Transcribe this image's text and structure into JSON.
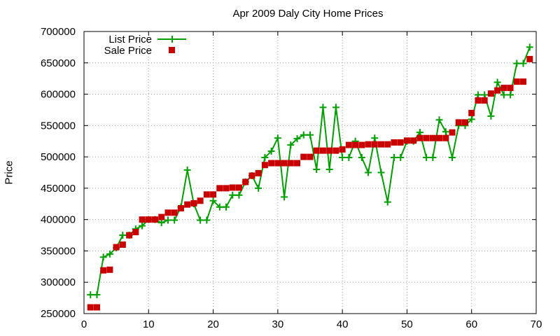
{
  "chart_data": {
    "type": "line",
    "title": "Apr 2009 Daly City Home Prices",
    "xlabel": "",
    "ylabel": "Price",
    "xlim": [
      0,
      70
    ],
    "ylim": [
      250000,
      700000
    ],
    "x_ticks": [
      0,
      10,
      20,
      30,
      40,
      50,
      60,
      70
    ],
    "y_ticks": [
      250000,
      300000,
      350000,
      400000,
      450000,
      500000,
      550000,
      600000,
      650000,
      700000
    ],
    "grid": true,
    "legend_position": "top-left",
    "series": [
      {
        "name": "List Price",
        "style": "line-plus",
        "color": "#00a000",
        "x": [
          1,
          2,
          3,
          4,
          5,
          6,
          7,
          8,
          9,
          10,
          11,
          12,
          13,
          14,
          15,
          16,
          17,
          18,
          19,
          20,
          21,
          22,
          23,
          24,
          25,
          26,
          27,
          28,
          29,
          30,
          31,
          32,
          33,
          34,
          35,
          36,
          37,
          38,
          39,
          40,
          41,
          42,
          43,
          44,
          45,
          46,
          47,
          48,
          49,
          50,
          51,
          52,
          53,
          54,
          55,
          56,
          57,
          58,
          59,
          60,
          61,
          62,
          63,
          64,
          65,
          66,
          67,
          68,
          69
        ],
        "y": [
          280000,
          280000,
          340000,
          345000,
          355000,
          375000,
          375000,
          385000,
          390000,
          400000,
          400000,
          395000,
          399000,
          399000,
          420000,
          479000,
          425000,
          399000,
          399000,
          430000,
          420000,
          420000,
          439000,
          439000,
          460000,
          470000,
          450000,
          499000,
          509000,
          530000,
          436000,
          519000,
          529000,
          535000,
          535000,
          480000,
          579000,
          480000,
          579000,
          499000,
          499000,
          525000,
          499000,
          475000,
          530000,
          475000,
          428000,
          499000,
          499000,
          525000,
          525000,
          539000,
          499000,
          499000,
          559000,
          540000,
          499000,
          550000,
          550000,
          560000,
          599000,
          599000,
          565000,
          619000,
          599000,
          599000,
          649000,
          649000,
          675000
        ]
      },
      {
        "name": "Sale Price",
        "style": "square",
        "color": "#c80000",
        "x": [
          1,
          2,
          3,
          4,
          5,
          6,
          7,
          8,
          9,
          10,
          11,
          12,
          13,
          14,
          15,
          16,
          17,
          18,
          19,
          20,
          21,
          22,
          23,
          24,
          25,
          26,
          27,
          28,
          29,
          30,
          31,
          32,
          33,
          34,
          35,
          36,
          37,
          38,
          39,
          40,
          41,
          42,
          43,
          44,
          45,
          46,
          47,
          48,
          49,
          50,
          51,
          52,
          53,
          54,
          55,
          56,
          57,
          58,
          59,
          60,
          61,
          62,
          63,
          64,
          65,
          66,
          67,
          68,
          69
        ],
        "y": [
          260000,
          260000,
          319000,
          320000,
          356000,
          360000,
          375000,
          380000,
          400000,
          400000,
          400000,
          404000,
          411000,
          411000,
          418000,
          424000,
          426000,
          430000,
          440000,
          440000,
          450000,
          450000,
          451000,
          451000,
          460000,
          470000,
          474000,
          487000,
          490000,
          490000,
          490000,
          490000,
          490000,
          500000,
          500000,
          510000,
          510000,
          510000,
          510000,
          512000,
          519000,
          519000,
          519000,
          520000,
          520000,
          520000,
          520000,
          523000,
          523000,
          526000,
          526000,
          530000,
          530000,
          530000,
          530000,
          530000,
          539000,
          555000,
          555000,
          570000,
          590000,
          590000,
          601000,
          606000,
          610000,
          610000,
          620000,
          620000,
          656000
        ]
      }
    ]
  }
}
